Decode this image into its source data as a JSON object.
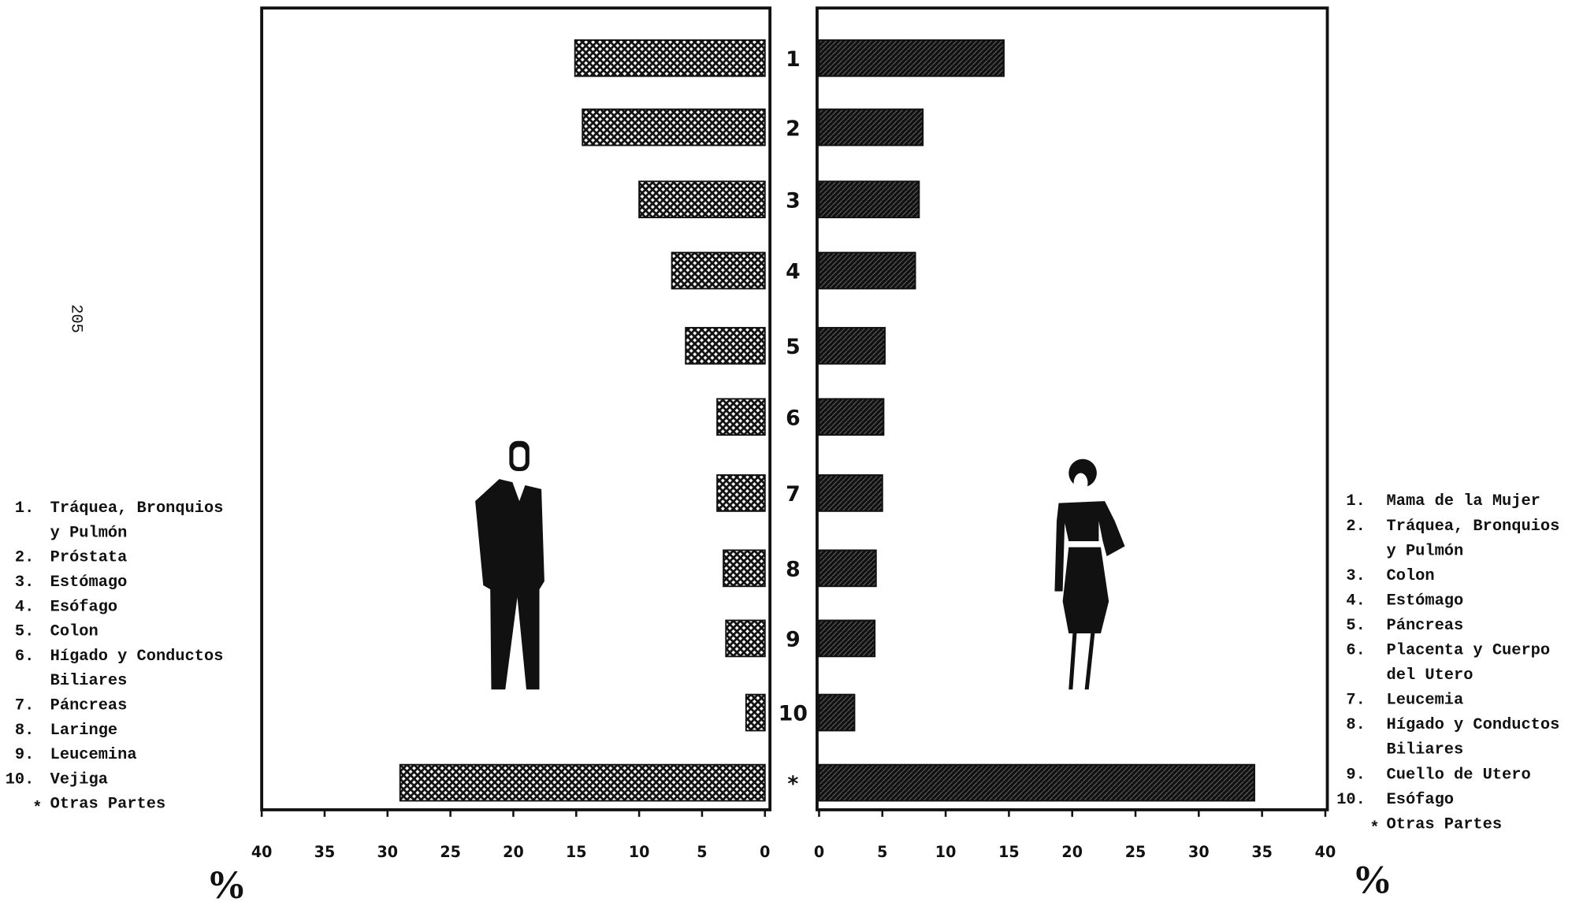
{
  "page_number": "205",
  "chart_data": [
    {
      "type": "bar",
      "orientation": "horizontal",
      "reversed": true,
      "color": "#111",
      "pattern": "crosshatch",
      "categories": [
        "1",
        "2",
        "3",
        "4",
        "5",
        "6",
        "7",
        "8",
        "9",
        "10",
        "*"
      ],
      "values": [
        15.1,
        14.5,
        10.0,
        7.4,
        6.3,
        3.8,
        3.8,
        3.3,
        3.1,
        1.5,
        29.0
      ],
      "xlim": [
        0,
        40
      ],
      "xticks": [
        0,
        5,
        10,
        15,
        20,
        25,
        30,
        35,
        40
      ],
      "unit_label": "%",
      "legend_items": [
        {
          "number": "1.",
          "lines": [
            "Tráquea, Bronquios",
            "y Pulmón"
          ]
        },
        {
          "number": "2.",
          "lines": [
            "Próstata"
          ]
        },
        {
          "number": "3.",
          "lines": [
            "Estómago"
          ]
        },
        {
          "number": "4.",
          "lines": [
            "Esófago"
          ]
        },
        {
          "number": "5.",
          "lines": [
            "Colon"
          ]
        },
        {
          "number": "6.",
          "lines": [
            "Hígado y Conductos",
            "Biliares"
          ]
        },
        {
          "number": "7.",
          "lines": [
            "Páncreas"
          ]
        },
        {
          "number": "8.",
          "lines": [
            "Laringe"
          ]
        },
        {
          "number": "9.",
          "lines": [
            "Leucemina"
          ]
        },
        {
          "number": "10.",
          "lines": [
            "Vejiga"
          ]
        },
        {
          "number": "*",
          "lines": [
            "Otras Partes"
          ]
        }
      ]
    },
    {
      "type": "bar",
      "orientation": "horizontal",
      "reversed": false,
      "color": "#111",
      "pattern": "diagonal",
      "values": [
        14.6,
        8.2,
        7.9,
        7.6,
        5.2,
        5.1,
        5.0,
        4.5,
        4.4,
        2.8,
        34.4
      ],
      "xlim": [
        0,
        40
      ],
      "xticks": [
        0,
        5,
        10,
        15,
        20,
        25,
        30,
        35,
        40
      ],
      "unit_label": "%",
      "legend_items": [
        {
          "number": "1.",
          "lines": [
            "Mama de la Mujer"
          ]
        },
        {
          "number": "2.",
          "lines": [
            "Tráquea, Bronquios",
            "y Pulmón"
          ]
        },
        {
          "number": "3.",
          "lines": [
            "Colon"
          ]
        },
        {
          "number": "4.",
          "lines": [
            "Estómago"
          ]
        },
        {
          "number": "5.",
          "lines": [
            "Páncreas"
          ]
        },
        {
          "number": "6.",
          "lines": [
            "Placenta y Cuerpo",
            "del Utero"
          ]
        },
        {
          "number": "7.",
          "lines": [
            "Leucemia"
          ]
        },
        {
          "number": "8.",
          "lines": [
            "Hígado y Conductos",
            "Biliares"
          ]
        },
        {
          "number": "9.",
          "lines": [
            "Cuello de Utero"
          ]
        },
        {
          "number": "10.",
          "lines": [
            "Esófago"
          ]
        },
        {
          "number": "*",
          "lines": [
            "Otras Partes"
          ]
        }
      ]
    }
  ]
}
